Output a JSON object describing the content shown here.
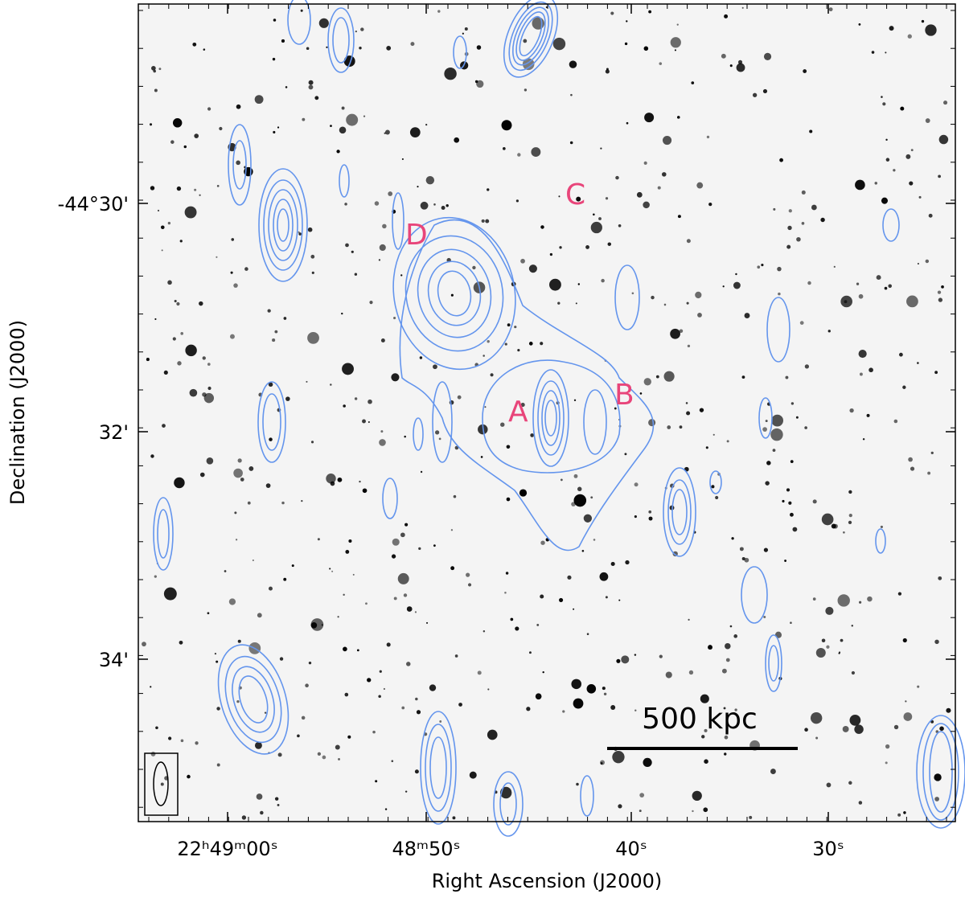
{
  "figure": {
    "x_label": "Right Ascension (J2000)",
    "y_label": "Declination (J2000)",
    "x_ticks": [
      "22ʰ49ᵐ00ˢ",
      "48ᵐ50ˢ",
      "40ˢ",
      "30ˢ"
    ],
    "y_ticks": [
      "-44°30'",
      "32'",
      "34'"
    ],
    "source_labels": [
      "A",
      "B",
      "C",
      "D"
    ],
    "scale_bar": "500 kpc"
  }
}
